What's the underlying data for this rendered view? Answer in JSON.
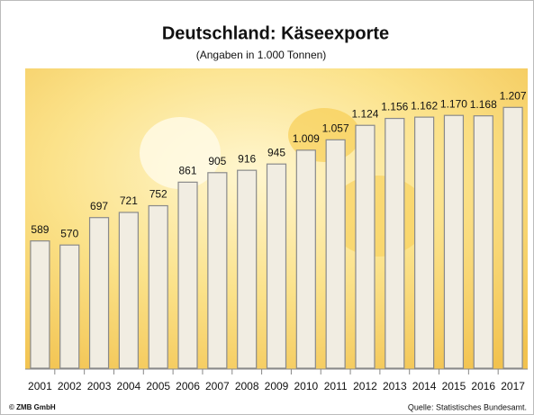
{
  "chart_data": {
    "type": "bar",
    "title": "Deutschland: Käseexporte",
    "subtitle": "(Angaben in 1.000 Tonnen)",
    "categories": [
      "2001",
      "2002",
      "2003",
      "2004",
      "2005",
      "2006",
      "2007",
      "2008",
      "2009",
      "2010",
      "2011",
      "2012",
      "2013",
      "2014",
      "2015",
      "2016",
      "2017"
    ],
    "values": [
      589,
      570,
      697,
      721,
      752,
      861,
      905,
      916,
      945,
      1009,
      1057,
      1124,
      1156,
      1162,
      1170,
      1168,
      1207
    ],
    "value_labels": [
      "589",
      "570",
      "697",
      "721",
      "752",
      "861",
      "905",
      "916",
      "945",
      "1.009",
      "1.057",
      "1.124",
      "1.156",
      "1.162",
      "1.170",
      "1.168",
      "1.207"
    ],
    "color": "#f1ede2",
    "footer_left": "© ZMB GmbH",
    "footer_right": "Quelle: Statistisches Bundesamt."
  }
}
